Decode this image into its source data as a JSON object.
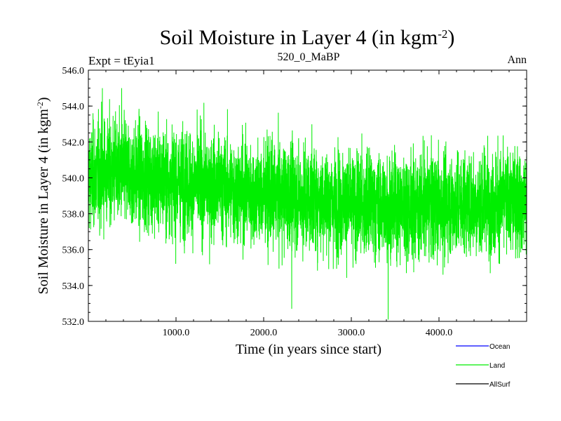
{
  "chart_data": {
    "type": "line",
    "title": "Soil Moisture in Layer 4 (in kgm",
    "title_sup": "-2",
    "title_close": ")",
    "subtitle_left": "Expt = tEyia1",
    "subtitle_center": "520_0_MaBP",
    "subtitle_right": "Ann",
    "xlabel": "Time (in years since start)",
    "ylabel": "Soil Moisture in Layer 4 (in kgm",
    "ylabel_sup": "-2",
    "ylabel_close": ")",
    "xlim": [
      0,
      5000
    ],
    "ylim": [
      532.0,
      546.0
    ],
    "xticks": [
      1000,
      2000,
      3000,
      4000
    ],
    "xtick_labels": [
      "1000.0",
      "2000.0",
      "3000.0",
      "4000.0"
    ],
    "yticks": [
      532,
      534,
      536,
      538,
      540,
      542,
      544,
      546
    ],
    "ytick_labels": [
      "532.0",
      "534.0",
      "536.0",
      "538.0",
      "540.0",
      "542.0",
      "544.0",
      "546.0"
    ],
    "legend": [
      {
        "name": "Ocean",
        "color": "#0000ff"
      },
      {
        "name": "Land",
        "color": "#00ee00"
      },
      {
        "name": "AllSurf",
        "color": "#000000"
      }
    ],
    "series": [
      {
        "name": "Land",
        "color": "#00ee00",
        "n_points": 5000,
        "trend_x": [
          0,
          250,
          500,
          1000,
          1500,
          2000,
          2500,
          3000,
          3500,
          4000,
          4500,
          5000
        ],
        "trend_y": [
          540.0,
          540.4,
          540.2,
          539.8,
          539.5,
          539.0,
          538.9,
          538.5,
          538.4,
          538.5,
          538.6,
          538.8
        ],
        "annotated_extremes": [
          {
            "x": 160,
            "y": 545.0
          },
          {
            "x": 380,
            "y": 545.0
          },
          {
            "x": 2320,
            "y": 532.7
          },
          {
            "x": 3420,
            "y": 532.1
          }
        ]
      }
    ]
  }
}
